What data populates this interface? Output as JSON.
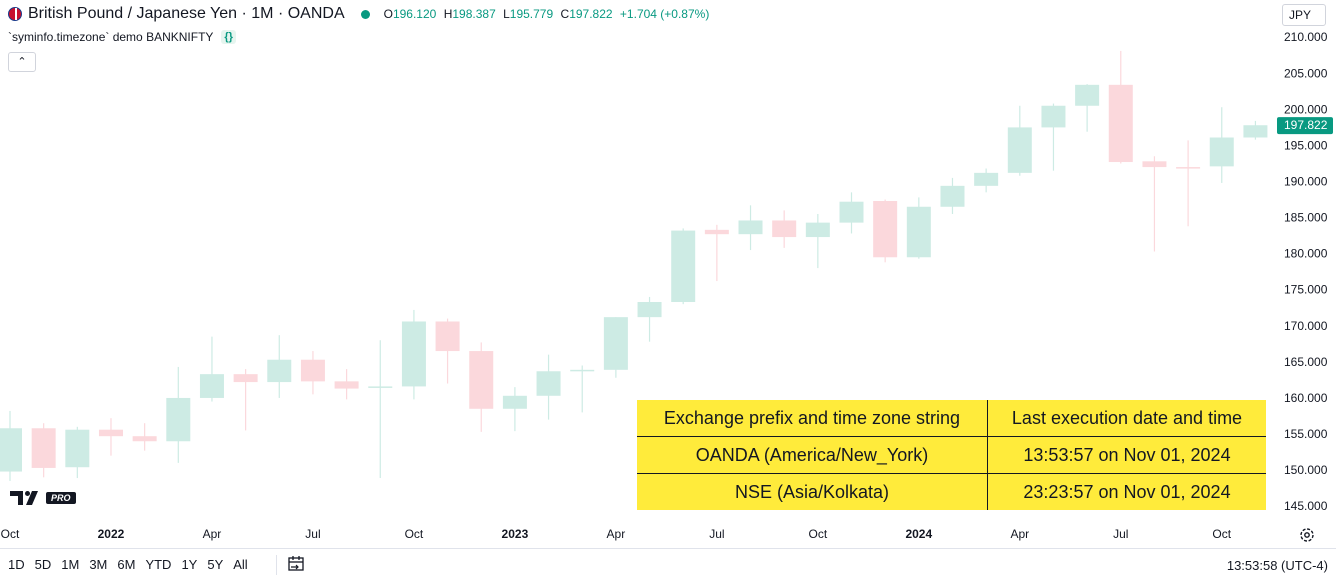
{
  "header": {
    "symbol_title": "British Pound / Japanese Yen · 1M · OANDA",
    "ohlc": [
      {
        "label": "O",
        "value": "196.120"
      },
      {
        "label": "H",
        "value": "198.387"
      },
      {
        "label": "L",
        "value": "195.779"
      },
      {
        "label": "C",
        "value": "197.822"
      }
    ],
    "change": "+1.704 (+0.87%)"
  },
  "indicator": {
    "name": "`syminfo.timezone` demo",
    "symbol": "BANKNIFTY"
  },
  "currency_button": "JPY",
  "price_scale": {
    "ticks": [
      "210.000",
      "205.000",
      "200.000",
      "195.000",
      "190.000",
      "185.000",
      "180.000",
      "175.000",
      "170.000",
      "165.000",
      "160.000",
      "155.000",
      "150.000",
      "145.000"
    ],
    "last_price_label": "197.822",
    "last_price_color": "#089981"
  },
  "time_scale": {
    "labels": [
      {
        "text": "Oct",
        "bold": false
      },
      {
        "text": "2022",
        "bold": true
      },
      {
        "text": "Apr",
        "bold": false
      },
      {
        "text": "Jul",
        "bold": false
      },
      {
        "text": "Oct",
        "bold": false
      },
      {
        "text": "2023",
        "bold": true
      },
      {
        "text": "Apr",
        "bold": false
      },
      {
        "text": "Jul",
        "bold": false
      },
      {
        "text": "Oct",
        "bold": false
      },
      {
        "text": "2024",
        "bold": true
      },
      {
        "text": "Apr",
        "bold": false
      },
      {
        "text": "Jul",
        "bold": false
      },
      {
        "text": "Oct",
        "bold": false
      }
    ]
  },
  "colors": {
    "up": "#cdebe4",
    "down": "#fbd8dc",
    "table_bg": "#ffeb3b",
    "accent": "#089981"
  },
  "info_table": {
    "headers": [
      "Exchange prefix and time zone string",
      "Last execution date and time"
    ],
    "rows": [
      [
        "OANDA (America/New_York)",
        "13:53:57 on Nov 01, 2024"
      ],
      [
        "NSE (Asia/Kolkata)",
        "23:23:57 on Nov 01, 2024"
      ]
    ]
  },
  "logo": {
    "badge": "PRO",
    "icon": "tradingview-logo-icon"
  },
  "bottom_bar": {
    "ranges": [
      "1D",
      "5D",
      "1M",
      "3M",
      "6M",
      "YTD",
      "1Y",
      "5Y",
      "All"
    ],
    "clock": "13:53:58 (UTC-4)"
  },
  "chart_data": {
    "type": "candlestick",
    "ylim": [
      143.5,
      211.0
    ],
    "x_labels": [
      "Oct",
      "2022",
      "Apr",
      "Jul",
      "Oct",
      "2023",
      "Apr",
      "Jul",
      "Oct",
      "2024",
      "Apr",
      "Jul",
      "Oct"
    ],
    "period_start": "2021-10",
    "ohlc": [
      {
        "month": "2021-10",
        "o": 149.8,
        "h": 158.2,
        "l": 148.5,
        "c": 155.8
      },
      {
        "month": "2021-11",
        "o": 155.8,
        "h": 156.5,
        "l": 149.0,
        "c": 150.3
      },
      {
        "month": "2021-12",
        "o": 150.4,
        "h": 156.0,
        "l": 148.9,
        "c": 155.6
      },
      {
        "month": "2022-01",
        "o": 155.6,
        "h": 157.2,
        "l": 152.0,
        "c": 154.7
      },
      {
        "month": "2022-02",
        "o": 154.7,
        "h": 156.5,
        "l": 152.7,
        "c": 154.0
      },
      {
        "month": "2022-03",
        "o": 154.0,
        "h": 164.3,
        "l": 151.0,
        "c": 160.0
      },
      {
        "month": "2022-04",
        "o": 160.0,
        "h": 168.5,
        "l": 159.5,
        "c": 163.3
      },
      {
        "month": "2022-05",
        "o": 163.3,
        "h": 164.0,
        "l": 155.5,
        "c": 162.2
      },
      {
        "month": "2022-06",
        "o": 162.2,
        "h": 168.7,
        "l": 160.0,
        "c": 165.3
      },
      {
        "month": "2022-07",
        "o": 165.3,
        "h": 166.5,
        "l": 160.5,
        "c": 162.3
      },
      {
        "month": "2022-08",
        "o": 162.3,
        "h": 164.0,
        "l": 159.8,
        "c": 161.3
      },
      {
        "month": "2022-09",
        "o": 161.4,
        "h": 168.0,
        "l": 148.9,
        "c": 161.6
      },
      {
        "month": "2022-10",
        "o": 161.6,
        "h": 172.2,
        "l": 159.8,
        "c": 170.6
      },
      {
        "month": "2022-11",
        "o": 170.6,
        "h": 171.0,
        "l": 162.0,
        "c": 166.5
      },
      {
        "month": "2022-12",
        "o": 166.5,
        "h": 167.7,
        "l": 155.3,
        "c": 158.5
      },
      {
        "month": "2023-01",
        "o": 158.5,
        "h": 161.5,
        "l": 155.4,
        "c": 160.3
      },
      {
        "month": "2023-02",
        "o": 160.3,
        "h": 166.0,
        "l": 157.0,
        "c": 163.7
      },
      {
        "month": "2023-03",
        "o": 163.8,
        "h": 164.5,
        "l": 158.0,
        "c": 163.9
      },
      {
        "month": "2023-04",
        "o": 163.9,
        "h": 171.2,
        "l": 162.8,
        "c": 171.2
      },
      {
        "month": "2023-05",
        "o": 171.2,
        "h": 174.0,
        "l": 167.8,
        "c": 173.3
      },
      {
        "month": "2023-06",
        "o": 173.3,
        "h": 183.5,
        "l": 173.0,
        "c": 183.2
      },
      {
        "month": "2023-07",
        "o": 183.3,
        "h": 184.0,
        "l": 176.2,
        "c": 182.7
      },
      {
        "month": "2023-08",
        "o": 182.7,
        "h": 186.7,
        "l": 180.5,
        "c": 184.6
      },
      {
        "month": "2023-09",
        "o": 184.6,
        "h": 186.0,
        "l": 180.8,
        "c": 182.3
      },
      {
        "month": "2023-10",
        "o": 182.3,
        "h": 185.5,
        "l": 178.0,
        "c": 184.3
      },
      {
        "month": "2023-11",
        "o": 184.3,
        "h": 188.5,
        "l": 182.8,
        "c": 187.2
      },
      {
        "month": "2023-12",
        "o": 187.3,
        "h": 187.5,
        "l": 178.8,
        "c": 179.5
      },
      {
        "month": "2024-01",
        "o": 179.5,
        "h": 187.8,
        "l": 179.3,
        "c": 186.5
      },
      {
        "month": "2024-02",
        "o": 186.5,
        "h": 190.5,
        "l": 185.5,
        "c": 189.4
      },
      {
        "month": "2024-03",
        "o": 189.4,
        "h": 191.8,
        "l": 188.5,
        "c": 191.2
      },
      {
        "month": "2024-04",
        "o": 191.2,
        "h": 200.5,
        "l": 190.8,
        "c": 197.5
      },
      {
        "month": "2024-05",
        "o": 197.5,
        "h": 200.8,
        "l": 191.5,
        "c": 200.5
      },
      {
        "month": "2024-06",
        "o": 200.5,
        "h": 203.5,
        "l": 196.9,
        "c": 203.4
      },
      {
        "month": "2024-07",
        "o": 203.4,
        "h": 208.1,
        "l": 192.5,
        "c": 192.7
      },
      {
        "month": "2024-08",
        "o": 192.8,
        "h": 193.5,
        "l": 180.3,
        "c": 192.0
      },
      {
        "month": "2024-09",
        "o": 192.0,
        "h": 195.7,
        "l": 183.8,
        "c": 191.8
      },
      {
        "month": "2024-10",
        "o": 192.1,
        "h": 200.3,
        "l": 189.8,
        "c": 196.1
      },
      {
        "month": "2024-11",
        "o": 196.1,
        "h": 198.4,
        "l": 195.8,
        "c": 197.8
      }
    ]
  }
}
